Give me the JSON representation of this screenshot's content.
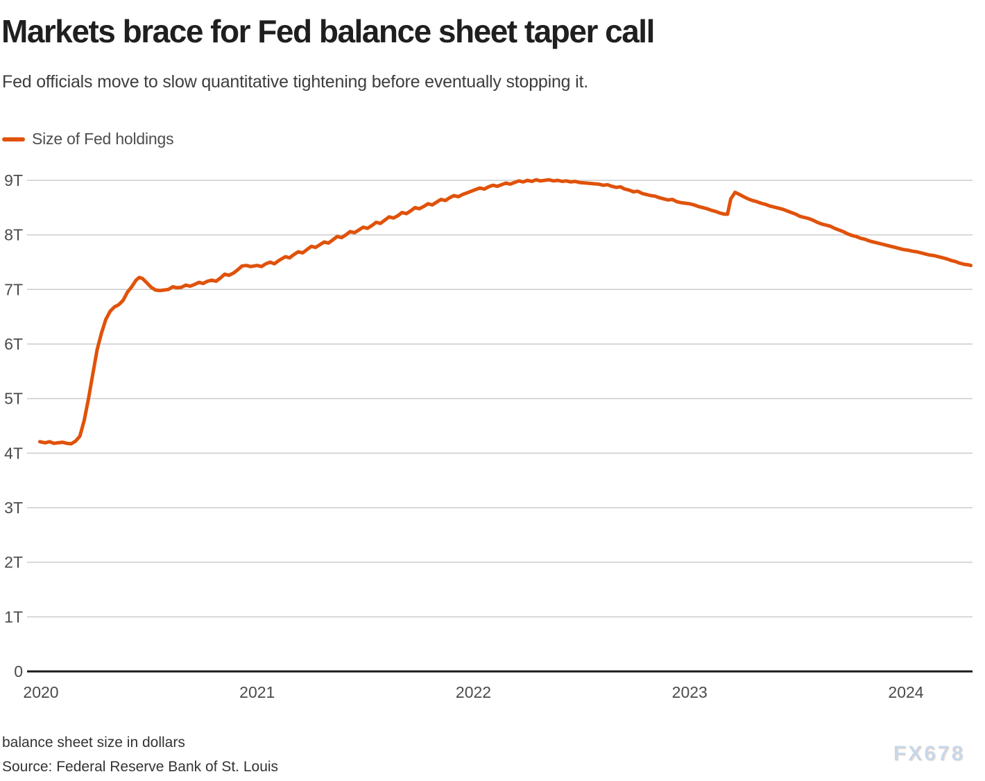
{
  "header": {
    "title": "Markets brace for Fed balance sheet taper call",
    "subtitle": "Fed officials move to slow quantitative tightening before eventually stopping it."
  },
  "legend": {
    "label": "Size of Fed holdings",
    "color": "#e0520a"
  },
  "footer": {
    "note": "balance sheet size in dollars",
    "source": "Source: Federal Reserve Bank of St. Louis",
    "watermark": "FX678"
  },
  "chart_data": {
    "type": "line",
    "title": "Markets brace for Fed balance sheet taper call",
    "subtitle": "Fed officials move to slow quantitative tightening before eventually stopping it.",
    "xlabel": "",
    "ylabel": "balance sheet size in dollars",
    "unit": "trillion USD",
    "grid": "horizontal",
    "gridline_color": "#cccccc",
    "axis_color": "#1a1a1a",
    "legend_position": "top-left",
    "xlim": [
      2020.0,
      2024.35
    ],
    "ylim": [
      0,
      9.3
    ],
    "x_ticks": [
      "2020",
      "2021",
      "2022",
      "2023",
      "2024"
    ],
    "y_ticks": [
      {
        "value": 0,
        "label": "0"
      },
      {
        "value": 1,
        "label": "1T"
      },
      {
        "value": 2,
        "label": "2T"
      },
      {
        "value": 3,
        "label": "3T"
      },
      {
        "value": 4,
        "label": "4T"
      },
      {
        "value": 5,
        "label": "5T"
      },
      {
        "value": 6,
        "label": "6T"
      },
      {
        "value": 7,
        "label": "7T"
      },
      {
        "value": 8,
        "label": "8T"
      },
      {
        "value": 9,
        "label": "9T"
      }
    ],
    "series": [
      {
        "name": "Size of Fed holdings",
        "color": "#e0520a",
        "points": [
          [
            2019.995,
            4.21
          ],
          [
            2020.02,
            4.19
          ],
          [
            2020.04,
            4.21
          ],
          [
            2020.06,
            4.18
          ],
          [
            2020.08,
            4.19
          ],
          [
            2020.1,
            4.2
          ],
          [
            2020.12,
            4.18
          ],
          [
            2020.14,
            4.17
          ],
          [
            2020.16,
            4.22
          ],
          [
            2020.18,
            4.31
          ],
          [
            2020.2,
            4.6
          ],
          [
            2020.22,
            5.0
          ],
          [
            2020.24,
            5.45
          ],
          [
            2020.26,
            5.9
          ],
          [
            2020.28,
            6.2
          ],
          [
            2020.3,
            6.45
          ],
          [
            2020.32,
            6.6
          ],
          [
            2020.34,
            6.68
          ],
          [
            2020.36,
            6.72
          ],
          [
            2020.38,
            6.8
          ],
          [
            2020.4,
            6.95
          ],
          [
            2020.42,
            7.05
          ],
          [
            2020.44,
            7.17
          ],
          [
            2020.455,
            7.22
          ],
          [
            2020.47,
            7.2
          ],
          [
            2020.49,
            7.12
          ],
          [
            2020.51,
            7.04
          ],
          [
            2020.53,
            6.99
          ],
          [
            2020.55,
            6.98
          ],
          [
            2020.57,
            6.99
          ],
          [
            2020.59,
            7.0
          ],
          [
            2020.61,
            7.05
          ],
          [
            2020.63,
            7.03
          ],
          [
            2020.65,
            7.04
          ],
          [
            2020.67,
            7.08
          ],
          [
            2020.69,
            7.06
          ],
          [
            2020.71,
            7.09
          ],
          [
            2020.73,
            7.13
          ],
          [
            2020.75,
            7.11
          ],
          [
            2020.77,
            7.15
          ],
          [
            2020.79,
            7.17
          ],
          [
            2020.81,
            7.15
          ],
          [
            2020.83,
            7.21
          ],
          [
            2020.85,
            7.28
          ],
          [
            2020.87,
            7.26
          ],
          [
            2020.89,
            7.3
          ],
          [
            2020.91,
            7.36
          ],
          [
            2020.93,
            7.43
          ],
          [
            2020.95,
            7.44
          ],
          [
            2020.97,
            7.42
          ],
          [
            2021.0,
            7.44
          ],
          [
            2021.02,
            7.42
          ],
          [
            2021.04,
            7.47
          ],
          [
            2021.06,
            7.5
          ],
          [
            2021.08,
            7.47
          ],
          [
            2021.1,
            7.53
          ],
          [
            2021.13,
            7.6
          ],
          [
            2021.15,
            7.58
          ],
          [
            2021.17,
            7.64
          ],
          [
            2021.19,
            7.69
          ],
          [
            2021.21,
            7.67
          ],
          [
            2021.23,
            7.73
          ],
          [
            2021.25,
            7.79
          ],
          [
            2021.27,
            7.77
          ],
          [
            2021.29,
            7.82
          ],
          [
            2021.31,
            7.87
          ],
          [
            2021.33,
            7.85
          ],
          [
            2021.35,
            7.91
          ],
          [
            2021.37,
            7.97
          ],
          [
            2021.39,
            7.95
          ],
          [
            2021.41,
            8.0
          ],
          [
            2021.43,
            8.06
          ],
          [
            2021.45,
            8.04
          ],
          [
            2021.47,
            8.09
          ],
          [
            2021.49,
            8.14
          ],
          [
            2021.51,
            8.12
          ],
          [
            2021.53,
            8.17
          ],
          [
            2021.55,
            8.23
          ],
          [
            2021.57,
            8.21
          ],
          [
            2021.59,
            8.27
          ],
          [
            2021.61,
            8.33
          ],
          [
            2021.63,
            8.31
          ],
          [
            2021.65,
            8.35
          ],
          [
            2021.67,
            8.41
          ],
          [
            2021.69,
            8.39
          ],
          [
            2021.71,
            8.44
          ],
          [
            2021.73,
            8.5
          ],
          [
            2021.75,
            8.48
          ],
          [
            2021.77,
            8.52
          ],
          [
            2021.79,
            8.57
          ],
          [
            2021.81,
            8.55
          ],
          [
            2021.83,
            8.6
          ],
          [
            2021.85,
            8.65
          ],
          [
            2021.87,
            8.63
          ],
          [
            2021.89,
            8.68
          ],
          [
            2021.91,
            8.72
          ],
          [
            2021.93,
            8.7
          ],
          [
            2021.95,
            8.74
          ],
          [
            2021.97,
            8.77
          ],
          [
            2021.99,
            8.8
          ],
          [
            2022.01,
            8.83
          ],
          [
            2022.03,
            8.86
          ],
          [
            2022.05,
            8.84
          ],
          [
            2022.07,
            8.88
          ],
          [
            2022.09,
            8.91
          ],
          [
            2022.11,
            8.89
          ],
          [
            2022.13,
            8.92
          ],
          [
            2022.15,
            8.95
          ],
          [
            2022.17,
            8.93
          ],
          [
            2022.19,
            8.96
          ],
          [
            2022.21,
            8.99
          ],
          [
            2022.23,
            8.97
          ],
          [
            2022.25,
            9.0
          ],
          [
            2022.27,
            8.98
          ],
          [
            2022.29,
            9.01
          ],
          [
            2022.31,
            8.99
          ],
          [
            2022.33,
            9.0
          ],
          [
            2022.35,
            9.01
          ],
          [
            2022.37,
            8.99
          ],
          [
            2022.39,
            9.0
          ],
          [
            2022.41,
            8.98
          ],
          [
            2022.43,
            8.99
          ],
          [
            2022.45,
            8.97
          ],
          [
            2022.47,
            8.98
          ],
          [
            2022.49,
            8.96
          ],
          [
            2022.52,
            8.95
          ],
          [
            2022.55,
            8.94
          ],
          [
            2022.58,
            8.93
          ],
          [
            2022.6,
            8.91
          ],
          [
            2022.62,
            8.92
          ],
          [
            2022.64,
            8.89
          ],
          [
            2022.66,
            8.87
          ],
          [
            2022.68,
            8.88
          ],
          [
            2022.7,
            8.84
          ],
          [
            2022.72,
            8.82
          ],
          [
            2022.74,
            8.79
          ],
          [
            2022.76,
            8.8
          ],
          [
            2022.78,
            8.76
          ],
          [
            2022.8,
            8.74
          ],
          [
            2022.82,
            8.72
          ],
          [
            2022.84,
            8.71
          ],
          [
            2022.86,
            8.68
          ],
          [
            2022.88,
            8.66
          ],
          [
            2022.9,
            8.64
          ],
          [
            2022.92,
            8.65
          ],
          [
            2022.94,
            8.61
          ],
          [
            2022.96,
            8.59
          ],
          [
            2022.98,
            8.58
          ],
          [
            2023.0,
            8.57
          ],
          [
            2023.02,
            8.55
          ],
          [
            2023.04,
            8.52
          ],
          [
            2023.06,
            8.5
          ],
          [
            2023.08,
            8.48
          ],
          [
            2023.1,
            8.45
          ],
          [
            2023.12,
            8.43
          ],
          [
            2023.14,
            8.4
          ],
          [
            2023.16,
            8.38
          ],
          [
            2023.175,
            8.38
          ],
          [
            2023.19,
            8.66
          ],
          [
            2023.21,
            8.78
          ],
          [
            2023.23,
            8.74
          ],
          [
            2023.25,
            8.7
          ],
          [
            2023.27,
            8.66
          ],
          [
            2023.29,
            8.63
          ],
          [
            2023.31,
            8.61
          ],
          [
            2023.33,
            8.58
          ],
          [
            2023.35,
            8.56
          ],
          [
            2023.37,
            8.53
          ],
          [
            2023.39,
            8.51
          ],
          [
            2023.41,
            8.49
          ],
          [
            2023.43,
            8.47
          ],
          [
            2023.45,
            8.44
          ],
          [
            2023.47,
            8.41
          ],
          [
            2023.49,
            8.38
          ],
          [
            2023.51,
            8.34
          ],
          [
            2023.53,
            8.32
          ],
          [
            2023.55,
            8.3
          ],
          [
            2023.57,
            8.27
          ],
          [
            2023.59,
            8.23
          ],
          [
            2023.61,
            8.2
          ],
          [
            2023.63,
            8.18
          ],
          [
            2023.65,
            8.16
          ],
          [
            2023.67,
            8.12
          ],
          [
            2023.69,
            8.09
          ],
          [
            2023.71,
            8.06
          ],
          [
            2023.73,
            8.02
          ],
          [
            2023.75,
            7.99
          ],
          [
            2023.77,
            7.97
          ],
          [
            2023.79,
            7.94
          ],
          [
            2023.81,
            7.92
          ],
          [
            2023.83,
            7.89
          ],
          [
            2023.85,
            7.87
          ],
          [
            2023.87,
            7.85
          ],
          [
            2023.89,
            7.83
          ],
          [
            2023.91,
            7.81
          ],
          [
            2023.93,
            7.79
          ],
          [
            2023.95,
            7.77
          ],
          [
            2023.97,
            7.75
          ],
          [
            2023.99,
            7.73
          ],
          [
            2024.01,
            7.72
          ],
          [
            2024.03,
            7.7
          ],
          [
            2024.05,
            7.69
          ],
          [
            2024.07,
            7.67
          ],
          [
            2024.09,
            7.65
          ],
          [
            2024.11,
            7.63
          ],
          [
            2024.13,
            7.62
          ],
          [
            2024.15,
            7.6
          ],
          [
            2024.17,
            7.58
          ],
          [
            2024.19,
            7.56
          ],
          [
            2024.21,
            7.53
          ],
          [
            2024.23,
            7.51
          ],
          [
            2024.25,
            7.48
          ],
          [
            2024.27,
            7.46
          ],
          [
            2024.29,
            7.45
          ],
          [
            2024.3,
            7.44
          ]
        ]
      }
    ]
  }
}
